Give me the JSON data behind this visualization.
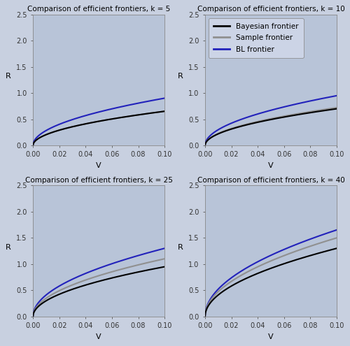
{
  "titles": [
    "Comparison of efficient frontiers, k = 5",
    "Comparison of efficient frontiers, k = 10",
    "Comparison of efficient frontiers, k = 25",
    "Comparison of efficient frontiers, k = 40"
  ],
  "xlabel": "V",
  "ylabel": "R",
  "xlim": [
    0.0,
    0.1
  ],
  "ylim": [
    0.0,
    2.5
  ],
  "xticks": [
    0.0,
    0.02,
    0.04,
    0.06,
    0.08,
    0.1
  ],
  "yticks": [
    0.0,
    0.5,
    1.0,
    1.5,
    2.0,
    2.5
  ],
  "background_color": "#b8c4d8",
  "panel_bg": "#b8c4d8",
  "outer_bg": "#c8d0e0",
  "line_colors": {
    "bayesian": "#000000",
    "sample": "#909090",
    "bl": "#2222bb"
  },
  "line_widths": {
    "bayesian": 1.5,
    "sample": 1.5,
    "bl": 1.5
  },
  "legend_labels": [
    "Bayesian frontier",
    "Sample frontier",
    "BL frontier"
  ],
  "legend_loc": "upper left",
  "coefficients": {
    "bayesian": [
      2.06,
      2.21,
      3.0,
      4.11
    ],
    "sample": [
      2.06,
      2.28,
      3.48,
      4.74
    ],
    "bl": [
      2.85,
      3.0,
      4.11,
      5.22
    ]
  }
}
